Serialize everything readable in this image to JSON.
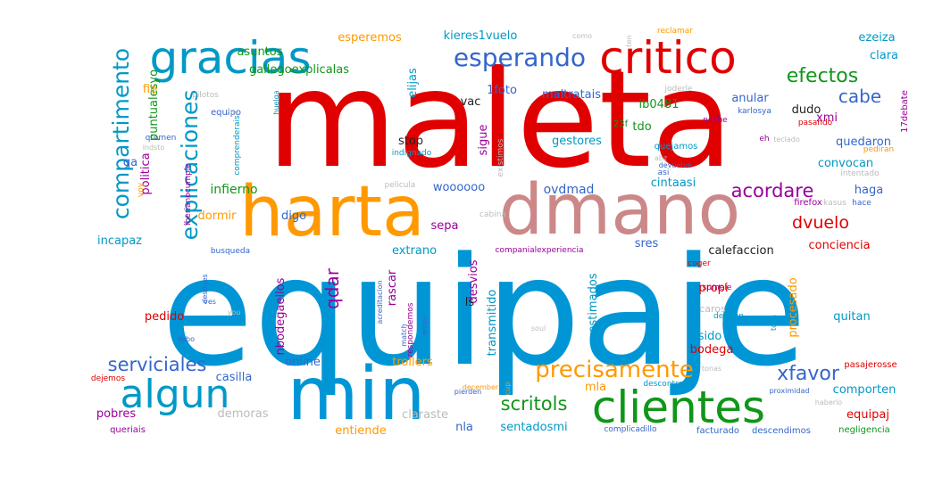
{
  "colors": {
    "red": "#e00000",
    "blue": "#0096d6",
    "orange": "#ff9900",
    "pink": "#cc8888",
    "green": "#109618",
    "purple": "#990099",
    "teal": "#0099c6",
    "navy": "#3366cc",
    "dark": "#222222",
    "grey": "#bbbbbb"
  },
  "words": [
    {
      "t": "equipaje",
      "c": "blue"
    },
    {
      "t": "maleta",
      "c": "red"
    },
    {
      "t": "harta",
      "c": "orange"
    },
    {
      "t": "dmano",
      "c": "pink"
    },
    {
      "t": "min",
      "c": "blue"
    },
    {
      "t": "critico",
      "c": "red"
    },
    {
      "t": "gracias",
      "c": "teal"
    },
    {
      "t": "clientes",
      "c": "green"
    },
    {
      "t": "algun",
      "c": "teal"
    },
    {
      "t": "esperando",
      "c": "navy"
    },
    {
      "t": "compartimento",
      "c": "teal"
    },
    {
      "t": "explicaciones",
      "c": "teal"
    },
    {
      "t": "precisamente",
      "c": "orange"
    },
    {
      "t": "efectos",
      "c": "green"
    },
    {
      "t": "serviciales",
      "c": "navy"
    },
    {
      "t": "acordare",
      "c": "purple"
    },
    {
      "t": "dvuelo",
      "c": "red"
    },
    {
      "t": "xfavor",
      "c": "navy"
    },
    {
      "t": "cabe",
      "c": "navy"
    },
    {
      "t": "scritols",
      "c": "green"
    },
    {
      "t": "qdar",
      "c": "purple"
    },
    {
      "t": "ovdmad",
      "c": "navy"
    },
    {
      "t": "infierno",
      "c": "green"
    },
    {
      "t": "esperemos",
      "c": "orange"
    },
    {
      "t": "asuntos",
      "c": "green"
    },
    {
      "t": "kieres1vuelo",
      "c": "teal"
    },
    {
      "t": "gallegoexplicalas",
      "c": "green"
    },
    {
      "t": "puntualesyo",
      "c": "green"
    },
    {
      "t": "maltratais",
      "c": "navy"
    },
    {
      "t": "1foto",
      "c": "navy"
    },
    {
      "t": "ezeiza",
      "c": "teal"
    },
    {
      "t": "clara",
      "c": "teal"
    },
    {
      "t": "anular",
      "c": "navy"
    },
    {
      "t": "ib0481",
      "c": "green"
    },
    {
      "t": "tdo",
      "c": "green"
    },
    {
      "t": "dudo",
      "c": "dark"
    },
    {
      "t": "xmi",
      "c": "purple"
    },
    {
      "t": "gestores",
      "c": "teal"
    },
    {
      "t": "stop",
      "c": "dark"
    },
    {
      "t": "elijas",
      "c": "teal"
    },
    {
      "t": "vac",
      "c": "dark"
    },
    {
      "t": "sigue",
      "c": "purple"
    },
    {
      "t": "quedaron",
      "c": "navy"
    },
    {
      "t": "convocan",
      "c": "teal"
    },
    {
      "t": "cintaasi",
      "c": "teal"
    },
    {
      "t": "haga",
      "c": "navy"
    },
    {
      "t": "conciencia",
      "c": "red"
    },
    {
      "t": "politica",
      "c": "purple"
    },
    {
      "t": "dormir",
      "c": "orange"
    },
    {
      "t": "incapaz",
      "c": "teal"
    },
    {
      "t": "digo",
      "c": "navy"
    },
    {
      "t": "woooooo",
      "c": "navy"
    },
    {
      "t": "sepa",
      "c": "purple"
    },
    {
      "t": "extrano",
      "c": "teal"
    },
    {
      "t": "sres",
      "c": "navy"
    },
    {
      "t": "calefaccion",
      "c": "dark"
    },
    {
      "t": "busqueda",
      "c": "navy"
    },
    {
      "t": "companialexperiencia",
      "c": "purple"
    },
    {
      "t": "desvios",
      "c": "purple"
    },
    {
      "t": "rascar",
      "c": "purple"
    },
    {
      "t": "pedido",
      "c": "red"
    },
    {
      "t": "ls",
      "c": "dark"
    },
    {
      "t": "transmitido",
      "c": "teal"
    },
    {
      "t": "estimados",
      "c": "teal"
    },
    {
      "t": "propi",
      "c": "red"
    },
    {
      "t": "caros",
      "c": "grey"
    },
    {
      "t": "sido",
      "c": "teal"
    },
    {
      "t": "bodega",
      "c": "red"
    },
    {
      "t": "procesado",
      "c": "orange"
    },
    {
      "t": "quitan",
      "c": "teal"
    },
    {
      "t": "nbodegaellos",
      "c": "purple"
    },
    {
      "t": "online",
      "c": "navy"
    },
    {
      "t": "trollers",
      "c": "orange"
    },
    {
      "t": "casilla",
      "c": "navy"
    },
    {
      "t": "mla",
      "c": "orange"
    },
    {
      "t": "comporten",
      "c": "teal"
    },
    {
      "t": "equipaj",
      "c": "red"
    },
    {
      "t": "pobres",
      "c": "purple"
    },
    {
      "t": "demoras",
      "c": "grey"
    },
    {
      "t": "claraste",
      "c": "grey"
    },
    {
      "t": "entiende",
      "c": "orange"
    },
    {
      "t": "nla",
      "c": "navy"
    },
    {
      "t": "sentadosmi",
      "c": "teal"
    },
    {
      "t": "facturado",
      "c": "navy"
    },
    {
      "t": "descendimos",
      "c": "navy"
    },
    {
      "t": "negligencia",
      "c": "green"
    },
    {
      "t": "complicadillo",
      "c": "navy"
    },
    {
      "t": "queriais",
      "c": "purple"
    },
    {
      "t": "fie",
      "c": "orange"
    },
    {
      "t": "qa",
      "c": "navy"
    },
    {
      "t": "equipo",
      "c": "navy"
    },
    {
      "t": "qtomen",
      "c": "navy"
    },
    {
      "t": "pilotos",
      "c": "grey"
    },
    {
      "t": "indsto",
      "c": "grey"
    },
    {
      "t": "iberianocumple",
      "c": "purple"
    },
    {
      "t": "voy",
      "c": "orange"
    },
    {
      "t": "comprenderais",
      "c": "teal"
    },
    {
      "t": "indignado",
      "c": "teal"
    },
    {
      "t": "huelga",
      "c": "teal"
    },
    {
      "t": "existimos",
      "c": "grey"
    },
    {
      "t": "pelicula",
      "c": "grey"
    },
    {
      "t": "cabina",
      "c": "grey"
    },
    {
      "t": "23f",
      "c": "green"
    },
    {
      "t": "quejamos",
      "c": "teal"
    },
    {
      "t": "abz",
      "c": "grey"
    },
    {
      "t": "asi",
      "c": "navy"
    },
    {
      "t": "devuelve",
      "c": "navy"
    },
    {
      "t": "noche",
      "c": "purple"
    },
    {
      "t": "pasando",
      "c": "red"
    },
    {
      "t": "karlosya",
      "c": "navy"
    },
    {
      "t": "joderle",
      "c": "grey"
    },
    {
      "t": "reclamar",
      "c": "orange"
    },
    {
      "t": "como",
      "c": "grey"
    },
    {
      "t": "ten",
      "c": "grey"
    },
    {
      "t": "17debate",
      "c": "purple"
    },
    {
      "t": "eh",
      "c": "purple"
    },
    {
      "t": "teclado",
      "c": "grey"
    },
    {
      "t": "pediran",
      "c": "orange"
    },
    {
      "t": "intentado",
      "c": "grey"
    },
    {
      "t": "firefox",
      "c": "purple"
    },
    {
      "t": "kasus",
      "c": "grey"
    },
    {
      "t": "hace",
      "c": "navy"
    },
    {
      "t": "coger",
      "c": "red"
    },
    {
      "t": "sumele",
      "c": "purple"
    },
    {
      "t": "dejaron",
      "c": "teal"
    },
    {
      "t": "toda",
      "c": "teal"
    },
    {
      "t": "cup",
      "c": "orange"
    },
    {
      "t": "pierden",
      "c": "navy"
    },
    {
      "t": "december",
      "c": "orange"
    },
    {
      "t": "descontrol",
      "c": "teal"
    },
    {
      "t": "proximidad",
      "c": "navy"
    },
    {
      "t": "pasajerosse",
      "c": "red"
    },
    {
      "t": "haberlo",
      "c": "grey"
    },
    {
      "t": "tonas",
      "c": "grey"
    },
    {
      "t": "soul",
      "c": "grey"
    },
    {
      "t": "dejemos",
      "c": "red"
    },
    {
      "t": "debo",
      "c": "navy"
    },
    {
      "t": "despues",
      "c": "navy"
    },
    {
      "t": "ves",
      "c": "navy"
    },
    {
      "t": "you",
      "c": "grey"
    },
    {
      "t": "acreditacion",
      "c": "navy"
    },
    {
      "t": "respondemos",
      "c": "purple"
    },
    {
      "t": "match",
      "c": "navy"
    },
    {
      "t": "empi",
      "c": "navy"
    },
    {
      "t": "7m",
      "c": "grey"
    }
  ]
}
